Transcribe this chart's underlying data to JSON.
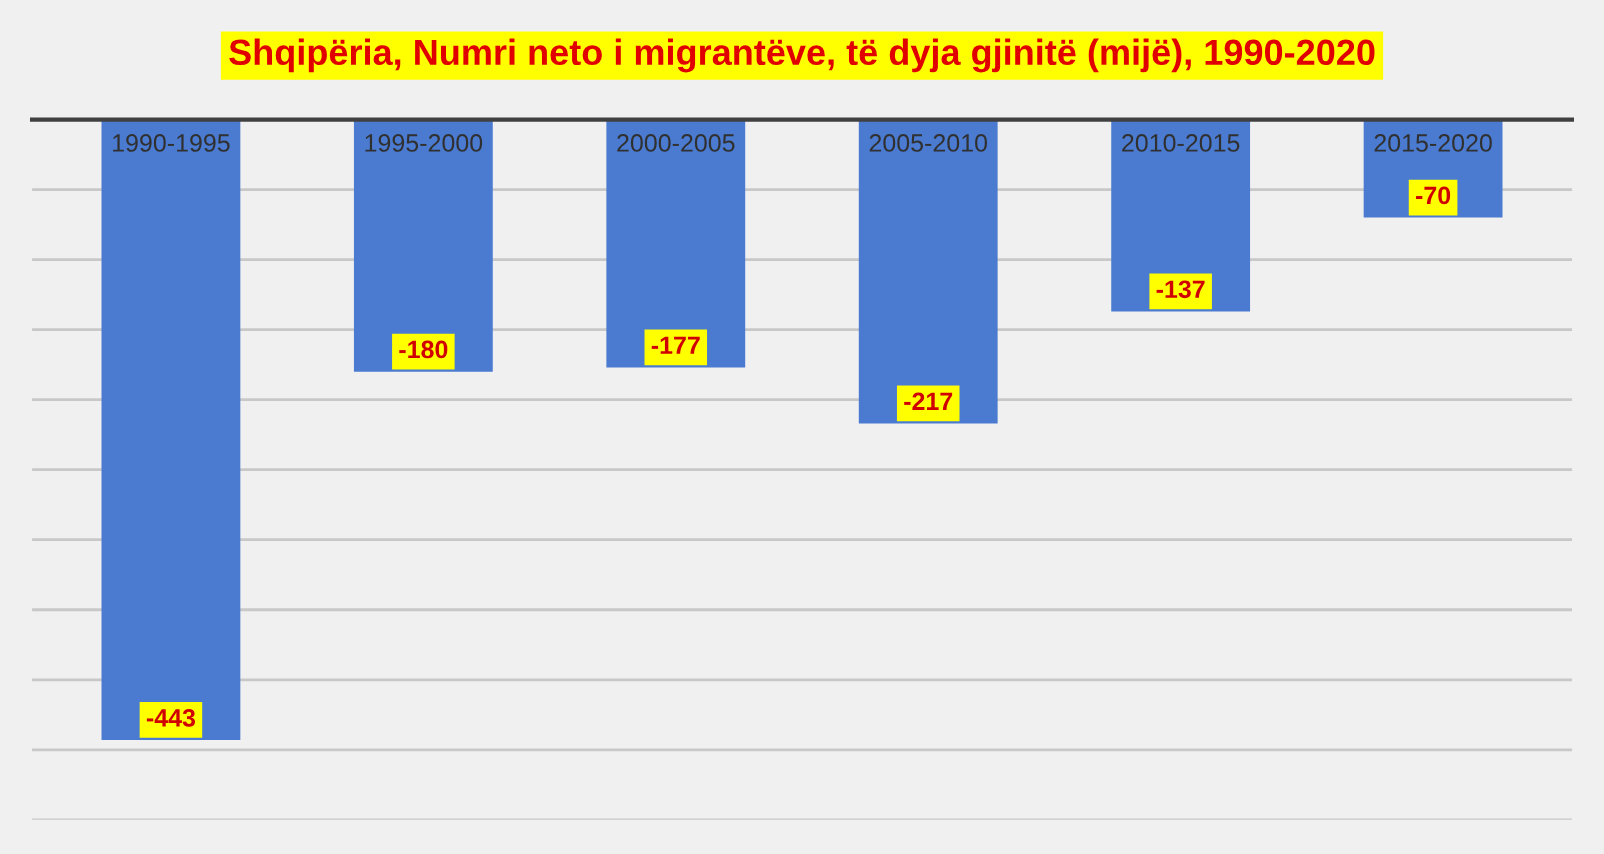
{
  "chart_data": {
    "type": "bar",
    "title": "Shqipëria, Numri neto i migrantëve, të dyja gjinitë (mijë), 1990-2020",
    "categories": [
      "1990-1995",
      "1995-2000",
      "2000-2005",
      "2005-2010",
      "2010-2015",
      "2015-2020"
    ],
    "values": [
      -443,
      -180,
      -177,
      -217,
      -137,
      -70
    ],
    "color": "#4a7bd0",
    "ylim": [
      -500,
      0
    ],
    "yticks": [
      {
        "value": 0,
        "label": null
      },
      {
        "value": -50,
        "label": null
      },
      {
        "value": -100,
        "label": null
      },
      {
        "value": -150,
        "label": null
      },
      {
        "value": -200,
        "label": null
      },
      {
        "value": -250,
        "label": null
      },
      {
        "value": -300,
        "label": null
      },
      {
        "value": -350,
        "label": null
      },
      {
        "value": -400,
        "label": null
      },
      {
        "value": -450,
        "label": null
      },
      {
        "value": -500,
        "label": null
      }
    ],
    "grid": "y",
    "tick_labels": "x",
    "data_labels": true
  }
}
